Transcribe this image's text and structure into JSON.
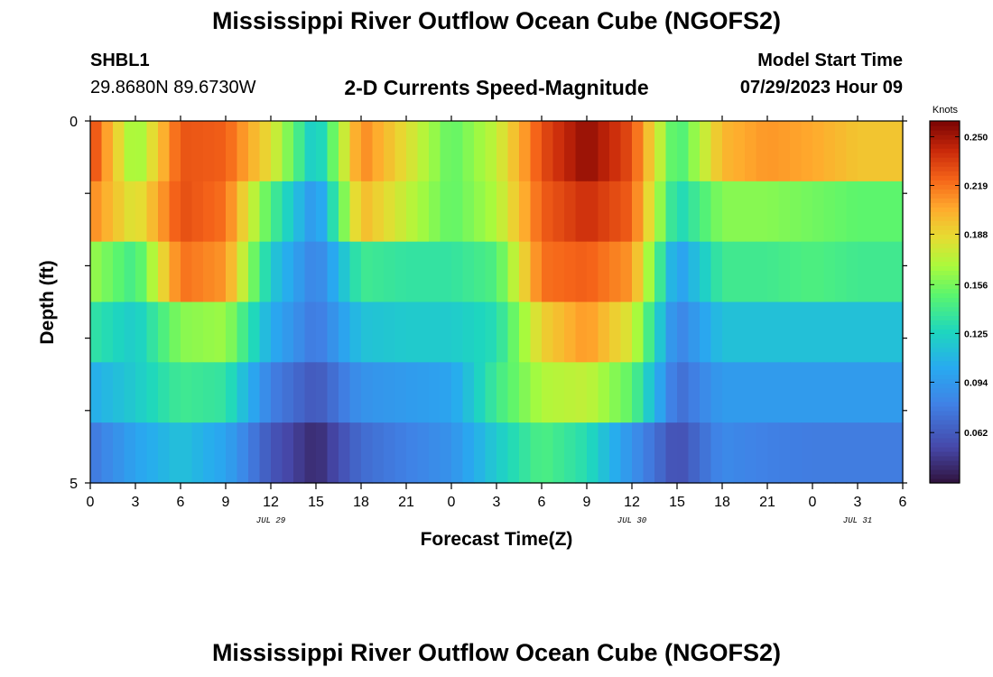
{
  "header": {
    "title": "Mississippi River Outflow Ocean Cube (NGOFS2)",
    "station_id": "SHBL1",
    "coordinates": "29.8680N  89.6730W",
    "subtitle": "2-D Currents Speed-Magnitude",
    "start_label": "Model Start Time",
    "start_value": "07/29/2023 Hour 09"
  },
  "footer": {
    "title": "Mississippi River Outflow Ocean Cube (NGOFS2)"
  },
  "chart_data": {
    "type": "heatmap",
    "title": "2-D Currents Speed-Magnitude",
    "xlabel": "Forecast Time(Z)",
    "ylabel": "Depth (ft)",
    "colorbar_label": "Knots",
    "x_tick_labels": [
      "0",
      "3",
      "6",
      "9",
      "12",
      "15",
      "18",
      "21",
      "0",
      "3",
      "6",
      "9",
      "12",
      "15",
      "18",
      "21",
      "0",
      "3",
      "6"
    ],
    "date_labels": [
      {
        "text": "JUL 29",
        "tick_index": 4
      },
      {
        "text": "JUL 30",
        "tick_index": 12
      },
      {
        "text": "JUL 31",
        "tick_index": 17
      }
    ],
    "y_tick_labels": [
      "0",
      "5"
    ],
    "ylim": [
      0,
      5
    ],
    "colorbar_ticks": [
      "0.250",
      "0.219",
      "0.188",
      "0.156",
      "0.125",
      "0.094",
      "0.062"
    ],
    "colorbar_tick_values": [
      0.25,
      0.219,
      0.188,
      0.156,
      0.125,
      0.094,
      0.062
    ],
    "color_range": [
      0.03,
      0.26
    ],
    "grid": false,
    "x_hours": [
      0,
      3,
      6,
      9,
      12,
      15,
      18,
      21,
      24,
      27,
      30,
      33,
      36,
      39,
      42,
      45,
      48,
      51,
      54
    ],
    "depth_layers": [
      "layer1",
      "layer2",
      "layer3",
      "layer4",
      "layer5",
      "layer6"
    ],
    "speed_knots": [
      [
        0.235,
        0.16,
        0.228,
        0.225,
        0.185,
        0.115,
        0.215,
        0.185,
        0.15,
        0.175,
        0.23,
        0.255,
        0.23,
        0.14,
        0.2,
        0.21,
        0.205,
        0.195,
        0.195
      ],
      [
        0.215,
        0.18,
        0.23,
        0.22,
        0.145,
        0.09,
        0.2,
        0.175,
        0.15,
        0.17,
        0.225,
        0.24,
        0.225,
        0.125,
        0.16,
        0.16,
        0.155,
        0.15,
        0.15
      ],
      [
        0.165,
        0.14,
        0.22,
        0.21,
        0.12,
        0.08,
        0.14,
        0.135,
        0.135,
        0.145,
        0.22,
        0.225,
        0.21,
        0.095,
        0.14,
        0.14,
        0.145,
        0.14,
        0.14
      ],
      [
        0.135,
        0.12,
        0.16,
        0.165,
        0.105,
        0.075,
        0.115,
        0.12,
        0.12,
        0.13,
        0.19,
        0.21,
        0.18,
        0.08,
        0.115,
        0.115,
        0.115,
        0.115,
        0.115
      ],
      [
        0.105,
        0.12,
        0.14,
        0.135,
        0.08,
        0.06,
        0.09,
        0.095,
        0.1,
        0.14,
        0.17,
        0.175,
        0.15,
        0.07,
        0.095,
        0.095,
        0.095,
        0.095,
        0.095
      ],
      [
        0.075,
        0.1,
        0.115,
        0.1,
        0.06,
        0.04,
        0.07,
        0.08,
        0.09,
        0.12,
        0.145,
        0.13,
        0.09,
        0.055,
        0.085,
        0.08,
        0.078,
        0.078,
        0.078
      ]
    ]
  }
}
